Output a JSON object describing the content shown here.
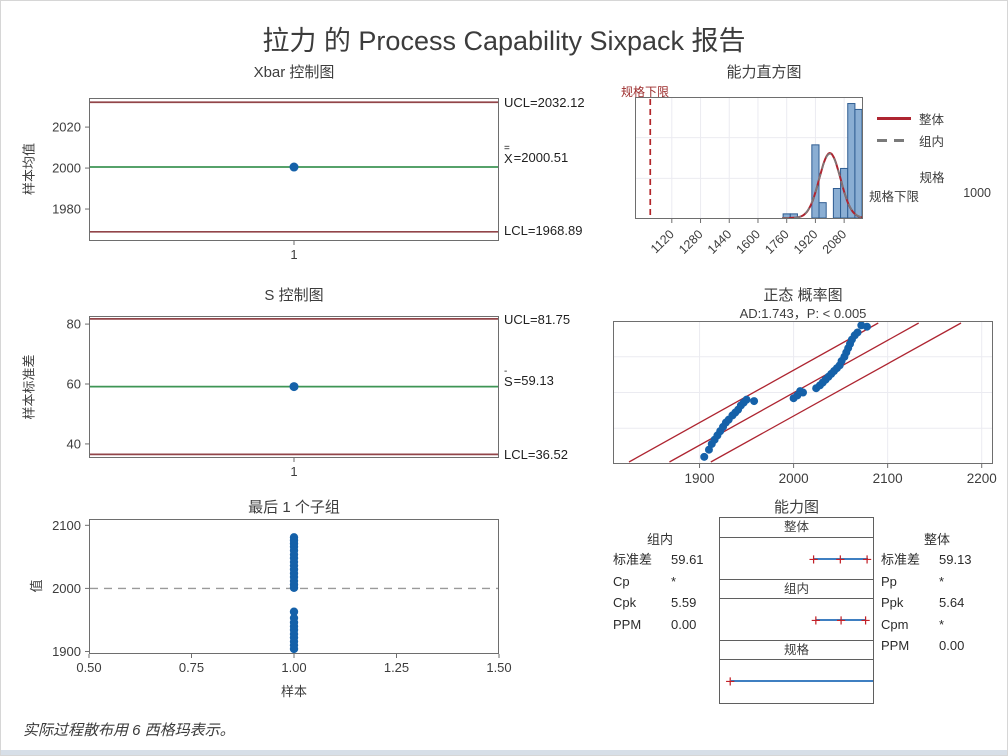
{
  "page": {
    "title": "拉力 的 Process Capability Sixpack 报告",
    "footnote": "实际过程散布用 6 西格玛表示。"
  },
  "colors": {
    "control_limit": "#924549",
    "center_line": "#3e9555",
    "point_blue": "#1561a9",
    "bar_fill": "#8aaed3",
    "bar_edge": "#2f5d92",
    "fit_red": "#ae2531",
    "within_gray": "#7a7a7a",
    "grid": "#ebebf1",
    "axis_frame": "#6e6e6e",
    "interval_blue": "#3f7fc1",
    "marker_red": "#c22128",
    "lsl_dash_red": "#b22428",
    "ref_dash_gray": "#9a9a9a"
  },
  "chart_data": {
    "xbar": {
      "type": "line",
      "title": "Xbar 控制图",
      "ylabel": "样本均值",
      "yticks": [
        2020,
        2000,
        1980
      ],
      "ylim": [
        1964.4,
        2034.2
      ],
      "xticks": [
        "1"
      ],
      "ucl": 2032.12,
      "center": 2000.51,
      "lcl": 1968.89,
      "points": [
        2000.51
      ],
      "annotations": {
        "ucl": "UCL=2032.12",
        "center_accent": "=",
        "center_letter": "X",
        "center_value": "=2000.51",
        "lcl": "LCL=1968.89"
      }
    },
    "schart": {
      "type": "line",
      "title": "S 控制图",
      "ylabel": "样本标准差",
      "yticks": [
        80,
        60,
        40
      ],
      "ylim": [
        35.3,
        82.7
      ],
      "xticks": [
        "1"
      ],
      "ucl": 81.75,
      "center": 59.13,
      "lcl": 36.52,
      "points": [
        59.13
      ],
      "annotations": {
        "ucl": "UCL=81.75",
        "center_accent": "-",
        "center_letter": "S",
        "center_value": "=59.13",
        "lcl": "LCL=36.52"
      }
    },
    "histogram": {
      "type": "bar",
      "title": "能力直方图",
      "lsl_label": "规格下限",
      "lsl": 1000,
      "xlim": [
        915,
        2185
      ],
      "xticks": [
        1120,
        1280,
        1440,
        1600,
        1760,
        1920,
        2080
      ],
      "bin_width": 40,
      "bars": [
        {
          "x": 1740,
          "h": 0.035
        },
        {
          "x": 1780,
          "h": 0.035
        },
        {
          "x": 1900,
          "h": 0.62
        },
        {
          "x": 1940,
          "h": 0.13
        },
        {
          "x": 2020,
          "h": 0.25
        },
        {
          "x": 2060,
          "h": 0.42
        },
        {
          "x": 2100,
          "h": 0.97
        },
        {
          "x": 2140,
          "h": 0.92
        }
      ],
      "curve": {
        "mean": 2000.5,
        "sd_overall": 59.13,
        "sd_within": 59.61,
        "peak": 0.55
      },
      "legend": [
        {
          "label": "整体",
          "style": "solid-red"
        },
        {
          "label": "组内",
          "style": "dashed-gray"
        }
      ],
      "spec_header": "规格",
      "spec_rows": [
        {
          "label": "规格下限",
          "value": "1000"
        }
      ]
    },
    "probplot": {
      "type": "scatter",
      "title": "正态 概率图",
      "subtitle": "AD:1.743，P: < 0.005",
      "xlim": [
        1808,
        2212
      ],
      "xticks": [
        1900,
        2000,
        2100,
        2200
      ],
      "fit_lines": [
        {
          "x_bottom": 1825,
          "x_top": 2090
        },
        {
          "x_bottom": 1868,
          "x_top": 2133
        },
        {
          "x_bottom": 1912,
          "x_top": 2178
        }
      ],
      "points": [
        [
          1905,
          0.05
        ],
        [
          1910,
          0.1
        ],
        [
          1913,
          0.14
        ],
        [
          1916,
          0.17
        ],
        [
          1919,
          0.2
        ],
        [
          1922,
          0.23
        ],
        [
          1925,
          0.26
        ],
        [
          1928,
          0.29
        ],
        [
          1931,
          0.31
        ],
        [
          1935,
          0.34
        ],
        [
          1938,
          0.36
        ],
        [
          1941,
          0.38
        ],
        [
          1944,
          0.41
        ],
        [
          1947,
          0.43
        ],
        [
          1950,
          0.45
        ],
        [
          1958,
          0.44
        ],
        [
          2000,
          0.46
        ],
        [
          2004,
          0.48
        ],
        [
          2007,
          0.51
        ],
        [
          2010,
          0.5
        ],
        [
          2024,
          0.53
        ],
        [
          2028,
          0.55
        ],
        [
          2031,
          0.57
        ],
        [
          2034,
          0.59
        ],
        [
          2037,
          0.61
        ],
        [
          2040,
          0.63
        ],
        [
          2043,
          0.65
        ],
        [
          2046,
          0.67
        ],
        [
          2049,
          0.69
        ],
        [
          2051,
          0.72
        ],
        [
          2054,
          0.75
        ],
        [
          2056,
          0.78
        ],
        [
          2058,
          0.81
        ],
        [
          2060,
          0.84
        ],
        [
          2062,
          0.87
        ],
        [
          2065,
          0.9
        ],
        [
          2068,
          0.92
        ],
        [
          2072,
          0.97
        ],
        [
          2078,
          0.96
        ]
      ]
    },
    "lastsub": {
      "type": "scatter",
      "title": "最后 1 个子组",
      "ylabel": "值",
      "xlabel": "样本",
      "ylim": [
        1896,
        2110
      ],
      "yticks": [
        2100,
        2000,
        1900
      ],
      "xticks": [
        "0.50",
        "0.75",
        "1.00",
        "1.25",
        "1.50"
      ],
      "refline": 2000,
      "x_value": "1.00",
      "points": [
        2081,
        2076,
        2071,
        2066,
        2060,
        2054,
        2048,
        2042,
        2036,
        2030,
        2024,
        2018,
        2012,
        2006,
        2001,
        1963,
        1953,
        1946,
        1940,
        1934,
        1928,
        1922,
        1916,
        1910,
        1904
      ]
    },
    "capability": {
      "type": "table",
      "title": "能力图",
      "sections": [
        {
          "label": "整体"
        },
        {
          "label": "组内"
        },
        {
          "label": "规格"
        }
      ],
      "intervals": {
        "overall": {
          "lo": 0.615,
          "mid": 0.79,
          "hi": 0.965
        },
        "within": {
          "lo": 0.63,
          "mid": 0.795,
          "hi": 0.955
        },
        "spec": {
          "plus": 0.07
        }
      },
      "within_stats": {
        "header": "组内",
        "rows": [
          [
            "标准差",
            "59.61"
          ],
          [
            "Cp",
            "*"
          ],
          [
            "Cpk",
            "5.59"
          ],
          [
            "PPM",
            "0.00"
          ]
        ]
      },
      "overall_stats": {
        "header": "整体",
        "rows": [
          [
            "标准差",
            "59.13"
          ],
          [
            "Pp",
            "*"
          ],
          [
            "Ppk",
            "5.64"
          ],
          [
            "Cpm",
            "*"
          ],
          [
            "PPM",
            "0.00"
          ]
        ]
      }
    }
  }
}
